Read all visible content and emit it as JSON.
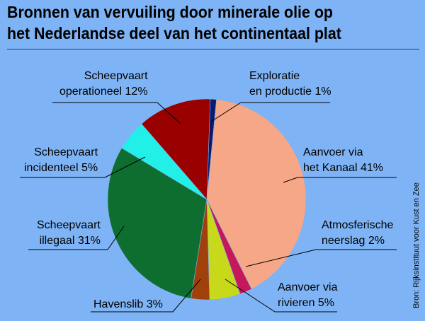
{
  "title_line1": "Bronnen van vervuiling door minerale olie op",
  "title_line2": "het Nederlandse deel van het continentaal plat",
  "source": "Bron: Rijksinstituut voor Kust en Zee",
  "chart_data": {
    "type": "pie",
    "title": "Bronnen van vervuiling door minerale olie op het Nederlandse deel van het continentaal plat",
    "unit": "%",
    "slices": [
      {
        "line1": "Exploratie",
        "line2": "en productie 1%",
        "label": "Exploratie en productie",
        "value": 1,
        "color": "#0a1a6e"
      },
      {
        "line1": "Aanvoer via",
        "line2": "het Kanaal 41%",
        "label": "Aanvoer via het Kanaal",
        "value": 41,
        "color": "#f5a788"
      },
      {
        "line1": "Atmosferische",
        "line2": "neerslag 2%",
        "label": "Atmosferische neerslag",
        "value": 2,
        "color": "#c4185a"
      },
      {
        "line1": "Aanvoer via",
        "line2": "rivieren 5%",
        "label": "Aanvoer via rivieren",
        "value": 5,
        "color": "#c8d81a"
      },
      {
        "line1": "Havenslib 3%",
        "line2": "",
        "label": "Havenslib",
        "value": 3,
        "color": "#a0400a"
      },
      {
        "line1": "Scheepvaart",
        "line2": "illegaal 31%",
        "label": "Scheepvaart illegaal",
        "value": 31,
        "color": "#0e6e30"
      },
      {
        "line1": "Scheepvaart",
        "line2": "incidenteel 5%",
        "label": "Scheepvaart incidenteel",
        "value": 5,
        "color": "#22f0e8"
      },
      {
        "line1": "Scheepvaart",
        "line2": "operationeel 12%",
        "label": "Scheepvaart operationeel",
        "value": 12,
        "color": "#990000"
      }
    ]
  }
}
